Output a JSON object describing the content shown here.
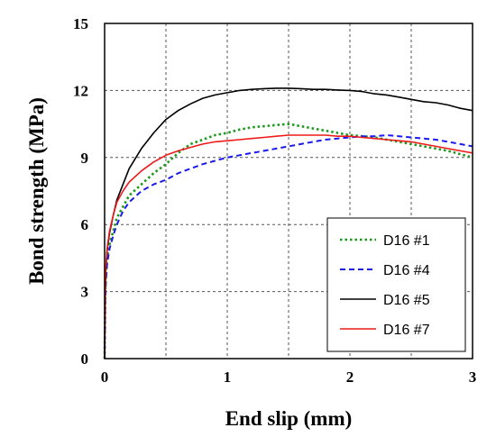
{
  "chart_data": {
    "type": "line",
    "title": "",
    "xlabel": "End slip (mm)",
    "ylabel": "Bond strength (MPa)",
    "xlim": [
      0,
      3
    ],
    "ylim": [
      0,
      15
    ],
    "xticks": [
      "0",
      "1",
      "2",
      "3"
    ],
    "yticks": [
      "0",
      "3",
      "6",
      "9",
      "12",
      "15"
    ],
    "grid": true,
    "legend_position": "bottom-right",
    "series": [
      {
        "name": "D16 #1",
        "color": "#1a9a1a",
        "dash": "dotted",
        "x": [
          0,
          0.005,
          0.01,
          0.02,
          0.04,
          0.07,
          0.1,
          0.15,
          0.2,
          0.3,
          0.4,
          0.5,
          0.6,
          0.7,
          0.8,
          0.9,
          1.0,
          1.1,
          1.2,
          1.3,
          1.4,
          1.5,
          1.6,
          1.7,
          1.8,
          1.9,
          2.0,
          2.1,
          2.2,
          2.3,
          2.4,
          2.5,
          2.6,
          2.7,
          2.8,
          2.9,
          3.0
        ],
        "y": [
          0,
          2.8,
          3.7,
          4.5,
          5.1,
          5.7,
          6.3,
          6.8,
          7.3,
          7.8,
          8.3,
          8.7,
          9.2,
          9.6,
          9.8,
          10.0,
          10.1,
          10.25,
          10.35,
          10.4,
          10.45,
          10.5,
          10.4,
          10.3,
          10.2,
          10.1,
          10.0,
          9.95,
          9.9,
          9.8,
          9.7,
          9.6,
          9.5,
          9.4,
          9.3,
          9.15,
          9.0
        ]
      },
      {
        "name": "D16 #4",
        "color": "#1a1aee",
        "dash": "dashed",
        "x": [
          0,
          0.005,
          0.01,
          0.02,
          0.04,
          0.07,
          0.1,
          0.15,
          0.2,
          0.3,
          0.4,
          0.5,
          0.6,
          0.7,
          0.8,
          0.9,
          1.0,
          1.1,
          1.2,
          1.3,
          1.4,
          1.5,
          1.6,
          1.7,
          1.8,
          1.9,
          2.0,
          2.1,
          2.2,
          2.3,
          2.4,
          2.5,
          2.6,
          2.7,
          2.8,
          2.9,
          3.0
        ],
        "y": [
          0,
          2.5,
          3.4,
          4.2,
          4.9,
          5.5,
          6.0,
          6.6,
          7.0,
          7.5,
          7.8,
          8.0,
          8.3,
          8.5,
          8.7,
          8.85,
          9.0,
          9.1,
          9.2,
          9.3,
          9.4,
          9.5,
          9.6,
          9.7,
          9.8,
          9.85,
          9.9,
          9.95,
          9.95,
          10.0,
          9.95,
          9.9,
          9.85,
          9.8,
          9.7,
          9.6,
          9.5
        ]
      },
      {
        "name": "D16 #5",
        "color": "#000000",
        "dash": "solid",
        "x": [
          0,
          0.005,
          0.01,
          0.02,
          0.04,
          0.07,
          0.1,
          0.15,
          0.2,
          0.3,
          0.4,
          0.5,
          0.6,
          0.7,
          0.8,
          0.9,
          1.0,
          1.1,
          1.2,
          1.3,
          1.4,
          1.5,
          1.6,
          1.7,
          1.8,
          1.9,
          2.0,
          2.1,
          2.2,
          2.3,
          2.4,
          2.5,
          2.6,
          2.7,
          2.8,
          2.9,
          3.0
        ],
        "y": [
          0,
          3.0,
          4.0,
          4.8,
          5.6,
          6.4,
          7.1,
          7.8,
          8.5,
          9.4,
          10.1,
          10.7,
          11.1,
          11.4,
          11.65,
          11.8,
          11.9,
          12.0,
          12.05,
          12.08,
          12.1,
          12.1,
          12.08,
          12.05,
          12.05,
          12.02,
          12.0,
          11.95,
          11.85,
          11.8,
          11.7,
          11.6,
          11.5,
          11.45,
          11.35,
          11.2,
          11.1
        ]
      },
      {
        "name": "D16 #7",
        "color": "#ee1a1a",
        "dash": "solid",
        "x": [
          0,
          0.005,
          0.01,
          0.02,
          0.04,
          0.07,
          0.1,
          0.15,
          0.2,
          0.3,
          0.4,
          0.5,
          0.6,
          0.7,
          0.8,
          0.9,
          1.0,
          1.1,
          1.2,
          1.3,
          1.4,
          1.5,
          1.6,
          1.7,
          1.8,
          1.9,
          2.0,
          2.1,
          2.2,
          2.3,
          2.4,
          2.5,
          2.6,
          2.7,
          2.8,
          2.9,
          3.0
        ],
        "y": [
          0,
          3.2,
          4.1,
          4.9,
          5.7,
          6.4,
          7.0,
          7.5,
          7.9,
          8.4,
          8.8,
          9.1,
          9.3,
          9.45,
          9.6,
          9.7,
          9.75,
          9.8,
          9.85,
          9.9,
          9.95,
          10.0,
          10.0,
          10.0,
          10.0,
          9.95,
          9.95,
          9.9,
          9.85,
          9.8,
          9.75,
          9.7,
          9.6,
          9.5,
          9.4,
          9.3,
          9.2
        ]
      }
    ]
  }
}
